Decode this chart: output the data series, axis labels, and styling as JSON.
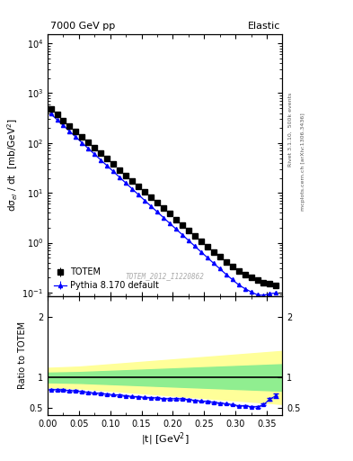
{
  "title_left": "7000 GeV pp",
  "title_right": "Elastic",
  "ylabel_main": "dσ$_{el}$ / dt  [mb/GeV$^2$]",
  "ylabel_ratio": "Ratio to TOTEM",
  "xlabel": "|t| [GeV$^2$]",
  "right_label_top": "Rivet 3.1.10,  500k events",
  "right_label_bottom": "mcplots.cern.ch [arXiv:1306.3436]",
  "watermark": "TOTEM_2012_I1220862",
  "xlim": [
    0.0,
    0.375
  ],
  "ylim_main": [
    0.085,
    15000
  ],
  "ylim_ratio": [
    0.38,
    2.35
  ],
  "ratio_yticks": [
    0.5,
    1.0,
    2.0
  ],
  "totem_color": "black",
  "pythia_color": "blue",
  "band1_color": "#90EE90",
  "band2_color": "#FFFF99",
  "totem_data": {
    "t": [
      0.005,
      0.015,
      0.025,
      0.035,
      0.045,
      0.055,
      0.065,
      0.075,
      0.085,
      0.095,
      0.105,
      0.115,
      0.125,
      0.135,
      0.145,
      0.155,
      0.165,
      0.175,
      0.185,
      0.195,
      0.205,
      0.215,
      0.225,
      0.235,
      0.245,
      0.255,
      0.265,
      0.275,
      0.285,
      0.295,
      0.305,
      0.315,
      0.325,
      0.335,
      0.345,
      0.355,
      0.365
    ],
    "y": [
      480,
      370,
      285,
      220,
      170,
      132,
      103,
      80,
      62,
      48.5,
      37.5,
      29,
      22.5,
      17.5,
      13.5,
      10.5,
      8.1,
      6.3,
      4.9,
      3.8,
      2.9,
      2.25,
      1.75,
      1.38,
      1.07,
      0.84,
      0.66,
      0.52,
      0.41,
      0.33,
      0.27,
      0.225,
      0.2,
      0.175,
      0.16,
      0.148,
      0.14
    ],
    "yerr": [
      8,
      6,
      4.5,
      3.5,
      2.7,
      2.1,
      1.6,
      1.25,
      0.97,
      0.76,
      0.59,
      0.46,
      0.35,
      0.27,
      0.21,
      0.16,
      0.126,
      0.098,
      0.077,
      0.059,
      0.046,
      0.036,
      0.027,
      0.022,
      0.017,
      0.013,
      0.01,
      0.008,
      0.006,
      0.005,
      0.004,
      0.004,
      0.003,
      0.003,
      0.003,
      0.003,
      0.003
    ]
  },
  "pythia_data": {
    "t": [
      0.005,
      0.015,
      0.025,
      0.035,
      0.045,
      0.055,
      0.065,
      0.075,
      0.085,
      0.095,
      0.105,
      0.115,
      0.125,
      0.135,
      0.145,
      0.155,
      0.165,
      0.175,
      0.185,
      0.195,
      0.205,
      0.215,
      0.225,
      0.235,
      0.245,
      0.255,
      0.265,
      0.275,
      0.285,
      0.295,
      0.305,
      0.315,
      0.325,
      0.335,
      0.345,
      0.355,
      0.365
    ],
    "y": [
      385,
      294,
      225,
      172,
      132,
      101,
      77.5,
      59.5,
      45.5,
      35,
      26.8,
      20.5,
      15.7,
      12.0,
      9.2,
      7.05,
      5.4,
      4.15,
      3.19,
      2.45,
      1.88,
      1.45,
      1.11,
      0.855,
      0.655,
      0.505,
      0.388,
      0.3,
      0.232,
      0.182,
      0.143,
      0.12,
      0.103,
      0.09,
      0.088,
      0.095,
      0.098
    ],
    "yerr": [
      2,
      1.5,
      1.2,
      0.9,
      0.7,
      0.54,
      0.41,
      0.32,
      0.24,
      0.19,
      0.14,
      0.11,
      0.084,
      0.064,
      0.049,
      0.038,
      0.029,
      0.022,
      0.017,
      0.013,
      0.01,
      0.008,
      0.006,
      0.005,
      0.004,
      0.003,
      0.002,
      0.002,
      0.0015,
      0.0012,
      0.001,
      0.001,
      0.001,
      0.001,
      0.002,
      0.003,
      0.004
    ]
  },
  "band_t": [
    0.0,
    0.05,
    0.1,
    0.15,
    0.2,
    0.25,
    0.3,
    0.35,
    0.375
  ],
  "band_green_lo": [
    0.92,
    0.91,
    0.89,
    0.87,
    0.85,
    0.83,
    0.81,
    0.79,
    0.78
  ],
  "band_green_hi": [
    1.08,
    1.09,
    1.11,
    1.13,
    1.15,
    1.17,
    1.19,
    1.21,
    1.22
  ],
  "band_yellow_lo": [
    0.84,
    0.82,
    0.78,
    0.74,
    0.7,
    0.66,
    0.62,
    0.58,
    0.56
  ],
  "band_yellow_hi": [
    1.16,
    1.18,
    1.22,
    1.26,
    1.3,
    1.34,
    1.38,
    1.42,
    1.44
  ]
}
